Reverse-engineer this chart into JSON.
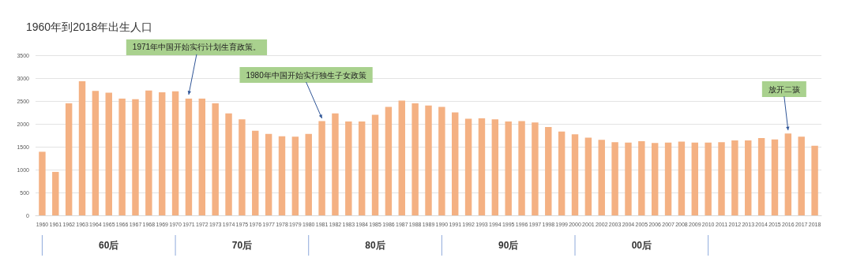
{
  "chart_data": {
    "type": "bar",
    "title": "1960年到2018年出生人口",
    "categories": [
      "1960",
      "1961",
      "1962",
      "1963",
      "1964",
      "1965",
      "1966",
      "1967",
      "1968",
      "1969",
      "1970",
      "1971",
      "1972",
      "1973",
      "1974",
      "1975",
      "1976",
      "1977",
      "1978",
      "1979",
      "1980",
      "1981",
      "1982",
      "1983",
      "1984",
      "1985",
      "1986",
      "1987",
      "1988",
      "1989",
      "1990",
      "1991",
      "1992",
      "1993",
      "1994",
      "1995",
      "1996",
      "1997",
      "1998",
      "1999",
      "2000",
      "2001",
      "2002",
      "2003",
      "2004",
      "2005",
      "2006",
      "2007",
      "2008",
      "2009",
      "2010",
      "2011",
      "2012",
      "2013",
      "2014",
      "2015",
      "2016",
      "2017",
      "2018"
    ],
    "values": [
      1390,
      950,
      2450,
      2930,
      2720,
      2680,
      2550,
      2540,
      2730,
      2690,
      2710,
      2550,
      2550,
      2450,
      2230,
      2100,
      1850,
      1780,
      1730,
      1720,
      1780,
      2060,
      2230,
      2050,
      2050,
      2200,
      2370,
      2510,
      2450,
      2400,
      2370,
      2250,
      2110,
      2120,
      2100,
      2050,
      2060,
      2030,
      1930,
      1830,
      1770,
      1700,
      1650,
      1600,
      1590,
      1620,
      1580,
      1590,
      1610,
      1590,
      1590,
      1600,
      1640,
      1640,
      1690,
      1660,
      1790,
      1720,
      1520
    ],
    "color": "#f4b183",
    "ylim": [
      0,
      3500
    ],
    "yticks": [
      0,
      500,
      1000,
      1500,
      2000,
      2500,
      3000,
      3500
    ],
    "grid": "y",
    "annotations": [
      {
        "text": "1971年中国开始实行计划生育政策。",
        "x": "1971",
        "y": 2640
      },
      {
        "text": "1980年中国开始实行独生子女政策",
        "x": "1981",
        "y": 2120
      },
      {
        "text": "放开二孩",
        "x": "2016",
        "y": 1860
      },
      "60后",
      "70后",
      "80后",
      "90后",
      "00后"
    ]
  }
}
